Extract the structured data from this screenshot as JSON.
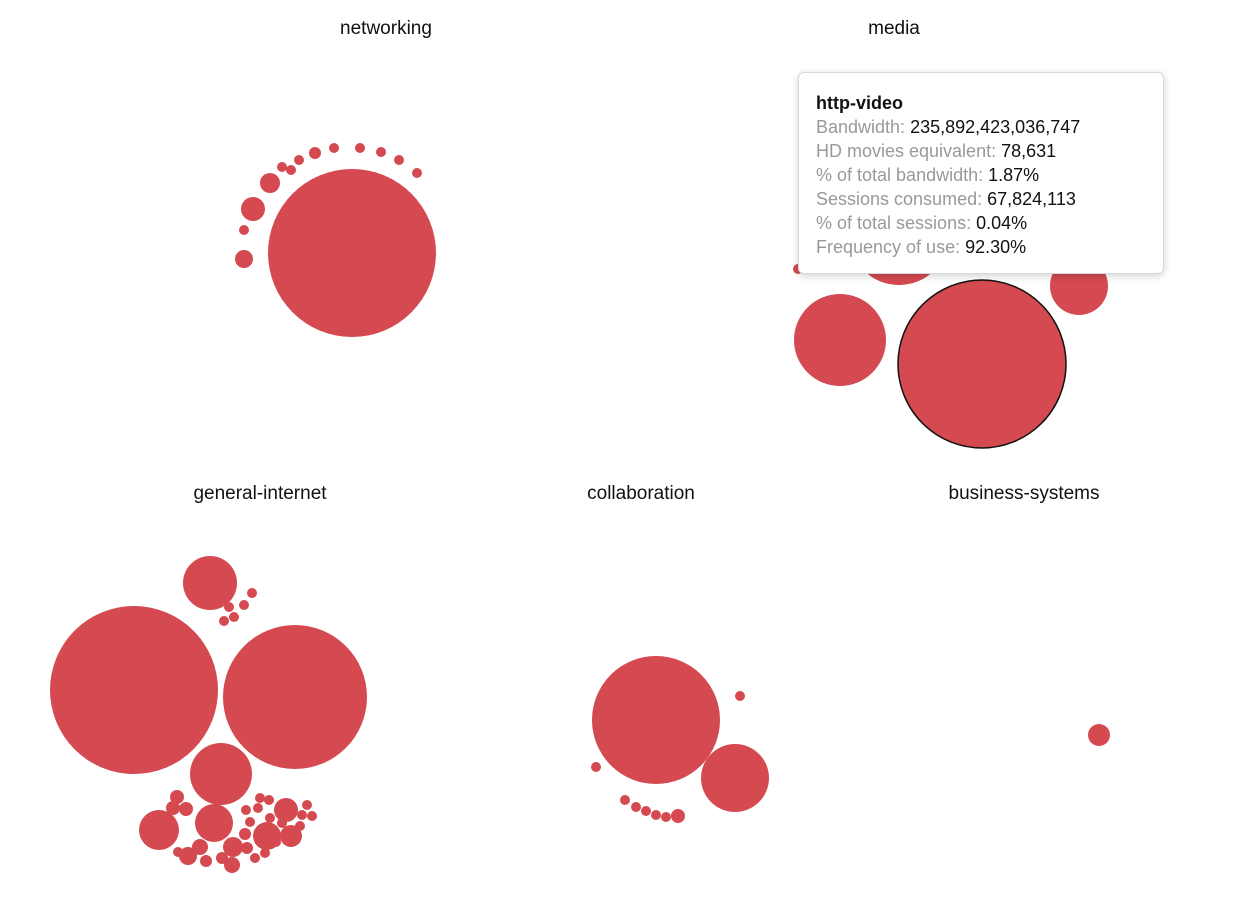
{
  "chart_data": {
    "type": "scatter",
    "kind": "packed-bubble-small-multiples",
    "bubble_color": "#d44a50",
    "highlight_stroke": "#111111",
    "panels": [
      {
        "title": "networking",
        "bubbles": [
          {
            "r": 84
          },
          {
            "r": 12
          },
          {
            "r": 10
          },
          {
            "r": 9
          },
          {
            "r": 6
          },
          {
            "r": 5
          },
          {
            "r": 5
          },
          {
            "r": 5
          },
          {
            "r": 5
          },
          {
            "r": 5
          },
          {
            "r": 5
          },
          {
            "r": 5
          },
          {
            "r": 5
          },
          {
            "r": 5
          }
        ]
      },
      {
        "title": "media",
        "bubbles": [
          {
            "r": 84,
            "highlighted": true
          },
          {
            "r": 50
          },
          {
            "r": 46
          },
          {
            "r": 29
          },
          {
            "r": 5
          }
        ]
      },
      {
        "title": "general-internet",
        "bubbles": [
          {
            "r": 84
          },
          {
            "r": 72
          },
          {
            "r": 31
          },
          {
            "r": 27
          },
          {
            "r": 20
          },
          {
            "r": 19
          },
          {
            "r": 14
          },
          {
            "r": 12
          },
          {
            "r": 11
          },
          {
            "r": 10
          },
          {
            "r": 9
          },
          {
            "r": 8
          },
          {
            "r": 8
          },
          {
            "r": 7
          },
          {
            "r": 7
          },
          {
            "r": 7
          },
          {
            "r": 6
          },
          {
            "r": 6
          },
          {
            "r": 6
          },
          {
            "r": 6
          },
          {
            "r": 5
          },
          {
            "r": 5
          },
          {
            "r": 5
          },
          {
            "r": 5
          },
          {
            "r": 5
          },
          {
            "r": 5
          },
          {
            "r": 5
          },
          {
            "r": 5
          },
          {
            "r": 5
          },
          {
            "r": 5
          },
          {
            "r": 5
          },
          {
            "r": 5
          },
          {
            "r": 5
          },
          {
            "r": 5
          },
          {
            "r": 5
          },
          {
            "r": 5
          },
          {
            "r": 5
          },
          {
            "r": 5
          },
          {
            "r": 5
          },
          {
            "r": 5
          }
        ]
      },
      {
        "title": "collaboration",
        "bubbles": [
          {
            "r": 64
          },
          {
            "r": 34
          },
          {
            "r": 7
          },
          {
            "r": 5
          },
          {
            "r": 5
          },
          {
            "r": 5
          },
          {
            "r": 5
          },
          {
            "r": 5
          },
          {
            "r": 5
          },
          {
            "r": 5
          }
        ]
      },
      {
        "title": "business-systems",
        "bubbles": [
          {
            "r": 11
          }
        ]
      }
    ]
  },
  "tooltip": {
    "title": "http-video",
    "rows": [
      {
        "label": "Bandwidth:",
        "value": "235,892,423,036,747"
      },
      {
        "label": "HD movies equivalent:",
        "value": "78,631"
      },
      {
        "label": "% of total bandwidth:",
        "value": "1.87%"
      },
      {
        "label": "Sessions consumed:",
        "value": "67,824,113"
      },
      {
        "label": "% of total sessions:",
        "value": "0.04%"
      },
      {
        "label": "Frequency of use:",
        "value": "92.30%"
      }
    ]
  }
}
